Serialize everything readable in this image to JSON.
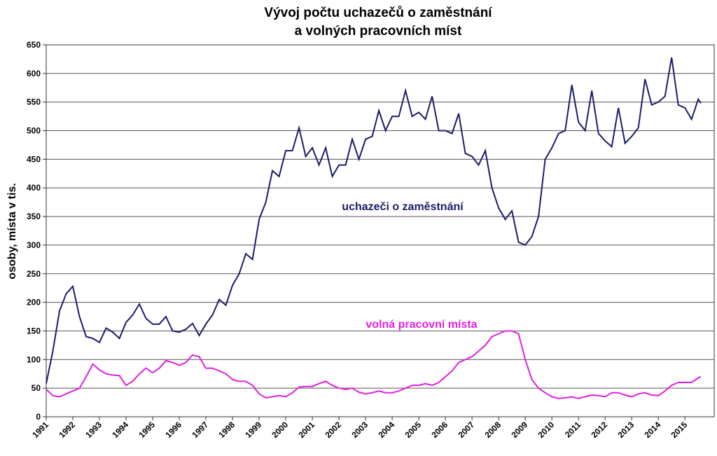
{
  "chart_data": {
    "type": "line",
    "title": [
      "Vývoj počtu uchazečů o zaměstnání",
      "a volných pracovních míst"
    ],
    "y_label": "osoby, místa v tis.",
    "annotations": [
      {
        "text": "uchazeči o zaměstnání",
        "series": 0
      },
      {
        "text": "volná pracovní místa",
        "series": 1
      }
    ],
    "x": [
      1991,
      1991.25,
      1991.5,
      1991.75,
      1992,
      1992.25,
      1992.5,
      1992.75,
      1993,
      1993.25,
      1993.5,
      1993.75,
      1994,
      1994.25,
      1994.5,
      1994.75,
      1995,
      1995.25,
      1995.5,
      1995.75,
      1996,
      1996.25,
      1996.5,
      1996.75,
      1997,
      1997.25,
      1997.5,
      1997.75,
      1998,
      1998.25,
      1998.5,
      1998.75,
      1999,
      1999.25,
      1999.5,
      1999.75,
      2000,
      2000.25,
      2000.5,
      2000.75,
      2001,
      2001.25,
      2001.5,
      2001.75,
      2002,
      2002.25,
      2002.5,
      2002.75,
      2003,
      2003.25,
      2003.5,
      2003.75,
      2004,
      2004.25,
      2004.5,
      2004.75,
      2005,
      2005.25,
      2005.5,
      2005.75,
      2006,
      2006.25,
      2006.5,
      2006.75,
      2007,
      2007.25,
      2007.5,
      2007.75,
      2008,
      2008.25,
      2008.5,
      2008.75,
      2009,
      2009.25,
      2009.5,
      2009.75,
      2010,
      2010.25,
      2010.5,
      2010.75,
      2011,
      2011.25,
      2011.5,
      2011.75,
      2012,
      2012.25,
      2012.5,
      2012.75,
      2013,
      2013.25,
      2013.5,
      2013.75,
      2014,
      2014.25,
      2014.5,
      2014.75,
      2015,
      2015.25,
      2015.5,
      2015.6
    ],
    "series": [
      {
        "name": "uchazeči o zaměstnání",
        "color": "#1c1c6b",
        "values": [
          58,
          115,
          185,
          215,
          228,
          175,
          140,
          137,
          130,
          155,
          148,
          137,
          165,
          178,
          197,
          172,
          162,
          162,
          175,
          150,
          148,
          153,
          163,
          142,
          162,
          178,
          205,
          195,
          230,
          250,
          285,
          275,
          345,
          375,
          430,
          420,
          465,
          465,
          505,
          455,
          470,
          440,
          470,
          420,
          440,
          440,
          485,
          450,
          485,
          490,
          535,
          500,
          525,
          525,
          570,
          525,
          532,
          520,
          560,
          500,
          500,
          495,
          530,
          460,
          455,
          440,
          465,
          400,
          365,
          345,
          360,
          305,
          300,
          315,
          350,
          450,
          470,
          495,
          500,
          580,
          515,
          500,
          570,
          495,
          482,
          472,
          540,
          478,
          490,
          505,
          590,
          545,
          550,
          560,
          628,
          545,
          540,
          520,
          555,
          548
        ]
      },
      {
        "name": "volná pracovní místa",
        "color": "#e020e0",
        "values": [
          48,
          37,
          35,
          40,
          45,
          50,
          70,
          92,
          82,
          75,
          73,
          72,
          55,
          62,
          75,
          85,
          77,
          85,
          98,
          95,
          90,
          95,
          108,
          105,
          85,
          85,
          80,
          75,
          65,
          62,
          62,
          55,
          40,
          33,
          35,
          37,
          35,
          42,
          52,
          53,
          53,
          58,
          62,
          55,
          50,
          48,
          50,
          43,
          40,
          42,
          45,
          42,
          42,
          45,
          50,
          55,
          55,
          58,
          55,
          60,
          70,
          80,
          95,
          100,
          105,
          115,
          125,
          140,
          145,
          150,
          150,
          145,
          100,
          65,
          50,
          42,
          35,
          32,
          33,
          35,
          32,
          35,
          38,
          37,
          35,
          42,
          42,
          38,
          35,
          40,
          42,
          38,
          37,
          45,
          55,
          60,
          60,
          60,
          68,
          70
        ]
      }
    ],
    "xlim": [
      1991,
      2016.1
    ],
    "xticks": [
      1991,
      1992,
      1993,
      1994,
      1995,
      1996,
      1997,
      1998,
      1999,
      2000,
      2001,
      2002,
      2003,
      2004,
      2005,
      2006,
      2007,
      2008,
      2009,
      2010,
      2011,
      2012,
      2013,
      2014,
      2015
    ],
    "ylim": [
      0,
      650
    ],
    "yticks": [
      0,
      50,
      100,
      150,
      200,
      250,
      300,
      350,
      400,
      450,
      500,
      550,
      600,
      650
    ],
    "grid": true
  }
}
